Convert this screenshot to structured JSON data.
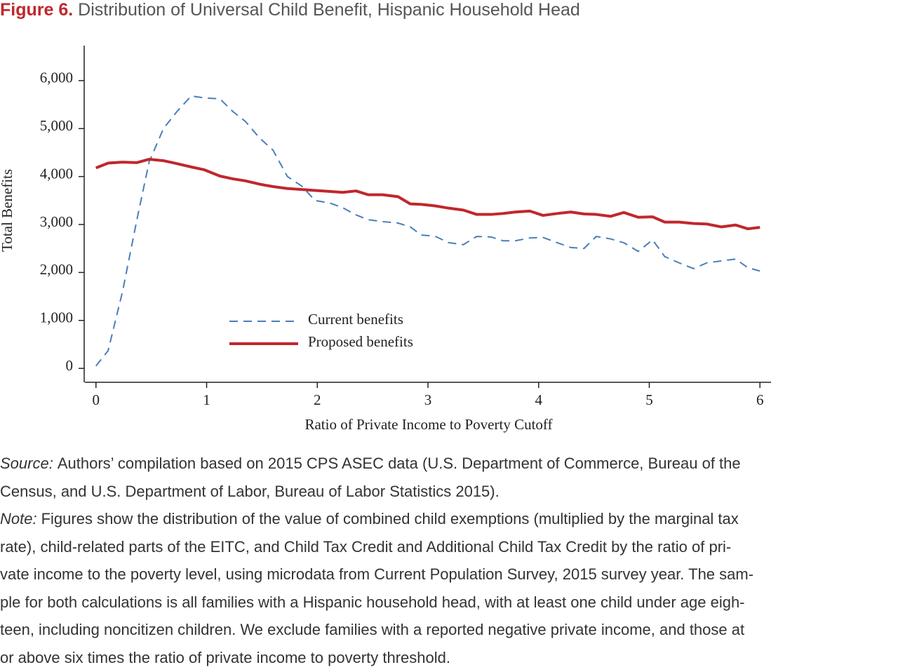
{
  "chart_data": {
    "type": "line",
    "figure_label": "Figure 6.",
    "title": "Distribution of Universal Child Benefit, Hispanic Household Head",
    "xlabel": "Ratio of Private Income to Poverty Cutoff",
    "ylabel": "Total Benefits",
    "x": [
      0,
      0.11,
      0.24,
      0.37,
      0.48,
      0.61,
      0.73,
      0.86,
      0.98,
      1.12,
      1.24,
      1.35,
      1.48,
      1.6,
      1.73,
      1.86,
      1.98,
      2.11,
      2.23,
      2.35,
      2.46,
      2.59,
      2.73,
      2.84,
      2.94,
      3.06,
      3.19,
      3.32,
      3.44,
      3.57,
      3.68,
      3.79,
      3.92,
      4.04,
      4.17,
      4.29,
      4.41,
      4.52,
      4.65,
      4.77,
      4.9,
      5.03,
      5.14,
      5.27,
      5.4,
      5.52,
      5.65,
      5.78,
      5.89,
      6
    ],
    "series": [
      {
        "name": "Current benefits",
        "color": "#4a7ebb",
        "dashed": true,
        "values": [
          50,
          370,
          1600,
          3100,
          4300,
          5000,
          5350,
          5680,
          5640,
          5620,
          5350,
          5150,
          4800,
          4550,
          4000,
          3800,
          3500,
          3450,
          3350,
          3200,
          3100,
          3060,
          3030,
          2950,
          2780,
          2760,
          2620,
          2580,
          2750,
          2740,
          2660,
          2660,
          2720,
          2730,
          2620,
          2520,
          2500,
          2750,
          2700,
          2620,
          2440,
          2680,
          2330,
          2200,
          2080,
          2200,
          2240,
          2280,
          2100,
          2030
        ]
      },
      {
        "name": "Proposed benefits",
        "color": "#c0272d",
        "dashed": false,
        "values": [
          4180,
          4280,
          4300,
          4290,
          4360,
          4330,
          4270,
          4200,
          4140,
          4010,
          3950,
          3910,
          3840,
          3790,
          3750,
          3730,
          3710,
          3690,
          3670,
          3700,
          3620,
          3620,
          3580,
          3430,
          3420,
          3390,
          3340,
          3300,
          3210,
          3210,
          3230,
          3260,
          3280,
          3190,
          3230,
          3260,
          3220,
          3210,
          3170,
          3250,
          3150,
          3160,
          3050,
          3050,
          3020,
          3010,
          2950,
          2990,
          2910,
          2940
        ]
      }
    ],
    "xlim": [
      -0.1,
      6.1
    ],
    "xticks": [
      0,
      1,
      2,
      3,
      4,
      5,
      6
    ],
    "ylim": [
      -290,
      6730
    ],
    "yticks": [
      0,
      {
        "value": 1000,
        "label": "1,000"
      },
      {
        "value": 2000,
        "label": "2,000"
      },
      {
        "value": 3000,
        "label": "3,000"
      },
      {
        "value": 4000,
        "label": "4,000"
      },
      {
        "value": 5000,
        "label": "5,000"
      },
      {
        "value": 6000,
        "label": "6,000"
      }
    ],
    "grid": false
  },
  "source": {
    "label": "Source:",
    "lines": [
      "Authors’ compilation based on 2015 CPS ASEC data (U.S. Department of Commerce, Bureau of the",
      "Census, and U.S. Department of Labor, Bureau of Labor Statistics 2015)."
    ]
  },
  "note": {
    "label": "Note:",
    "lines": [
      "Figures show the distribution of the value of combined child exemptions (multiplied by the marginal tax",
      "rate), child-related parts of the EITC, and Child Tax Credit and Additional Child Tax Credit by the ratio of pri-",
      "vate income to the poverty level, using microdata from Current Population Survey, 2015 survey year. The sam-",
      "ple for both calculations is all families with a Hispanic household head, with at least one child under age eigh-",
      "teen, including noncitizen children. We exclude families with a reported negative private income, and those at",
      "or above six times the ratio of private income to poverty threshold."
    ]
  }
}
